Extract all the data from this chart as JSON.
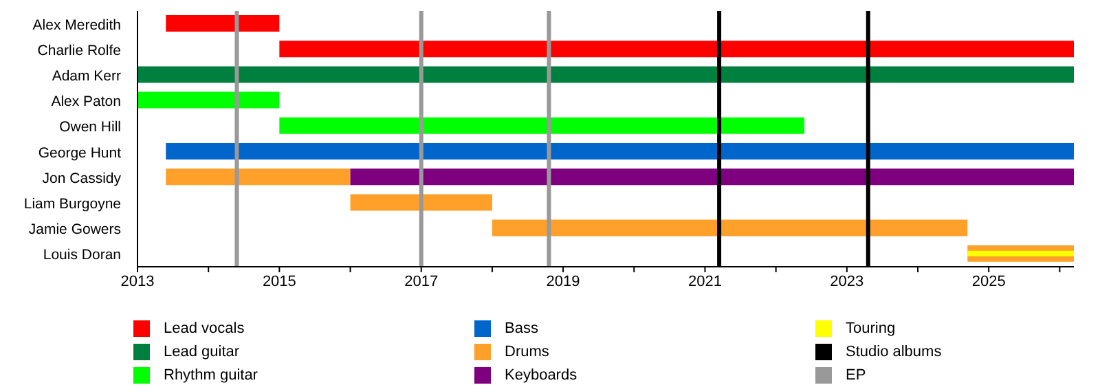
{
  "chart_data": {
    "type": "bar",
    "orientation": "horizontal",
    "categories": [
      "Alex Meredith",
      "Charlie Rolfe",
      "Adam Kerr",
      "Alex Paton",
      "Owen Hill",
      "George Hunt",
      "Jon Cassidy",
      "Liam Burgoyne",
      "Jamie Gowers",
      "Louis Doran"
    ],
    "series": [
      {
        "name": "Lead vocals",
        "color": "#ff0000",
        "base": [
          2013.4,
          2015,
          null,
          null,
          null,
          null,
          null,
          null,
          null,
          null
        ],
        "values": [
          1.6,
          11.2,
          null,
          null,
          null,
          null,
          null,
          null,
          null,
          null
        ]
      },
      {
        "name": "Lead guitar",
        "color": "#007f3f",
        "base": [
          null,
          null,
          2013,
          null,
          null,
          null,
          null,
          null,
          null,
          null
        ],
        "values": [
          null,
          null,
          13.2,
          null,
          null,
          null,
          null,
          null,
          null,
          null
        ]
      },
      {
        "name": "Rhythm guitar",
        "color": "#00ff00",
        "base": [
          null,
          null,
          null,
          2013,
          2015,
          null,
          null,
          null,
          null,
          null
        ],
        "values": [
          null,
          null,
          null,
          2,
          7.4,
          null,
          null,
          null,
          null,
          null
        ]
      },
      {
        "name": "Bass",
        "color": "#0066cc",
        "base": [
          null,
          null,
          null,
          null,
          null,
          2013.4,
          null,
          null,
          null,
          null
        ],
        "values": [
          null,
          null,
          null,
          null,
          null,
          12.8,
          null,
          null,
          null,
          null
        ]
      },
      {
        "name": "Drums",
        "color": "#ffa02a",
        "base": [
          null,
          null,
          null,
          null,
          null,
          null,
          2013.4,
          2016,
          2018,
          2024.7
        ],
        "values": [
          null,
          null,
          null,
          null,
          null,
          null,
          2.6,
          2,
          6.7,
          1.5
        ]
      },
      {
        "name": "Keyboards",
        "color": "#7f007f",
        "base": [
          null,
          null,
          null,
          null,
          null,
          null,
          2016,
          null,
          null,
          null
        ],
        "values": [
          null,
          null,
          null,
          null,
          null,
          null,
          10.2,
          null,
          null,
          null
        ]
      },
      {
        "name": "Touring",
        "color": "#ffff00",
        "base": [
          null,
          null,
          null,
          null,
          null,
          null,
          null,
          null,
          null,
          2024.7
        ],
        "values": [
          null,
          null,
          null,
          null,
          null,
          null,
          null,
          null,
          null,
          1.5
        ]
      }
    ],
    "xlim": [
      2013,
      2026.2
    ],
    "xticks": [
      2013,
      {
        "value": 2014,
        "label": null
      },
      2015,
      {
        "value": 2016,
        "label": null
      },
      2017,
      {
        "value": 2018,
        "label": null
      },
      2019,
      {
        "value": 2020,
        "label": null
      },
      2021,
      {
        "value": 2022,
        "label": null
      },
      2023,
      {
        "value": 2024,
        "label": null
      },
      2025,
      {
        "value": 2026,
        "label": null
      }
    ],
    "ref_lines": [
      {
        "axis": "x",
        "value": 2021.2,
        "label": "Studio albums",
        "color": "#000000"
      },
      {
        "axis": "x",
        "value": 2023.3,
        "label": null,
        "color": "#000000"
      },
      {
        "axis": "x",
        "value": 2014.4,
        "label": "EP",
        "color": "#999999"
      },
      {
        "axis": "x",
        "value": 2017,
        "label": null,
        "color": "#999999"
      },
      {
        "axis": "x",
        "value": 2018.8,
        "label": null,
        "color": "#999999"
      }
    ],
    "legend": "bottom"
  }
}
